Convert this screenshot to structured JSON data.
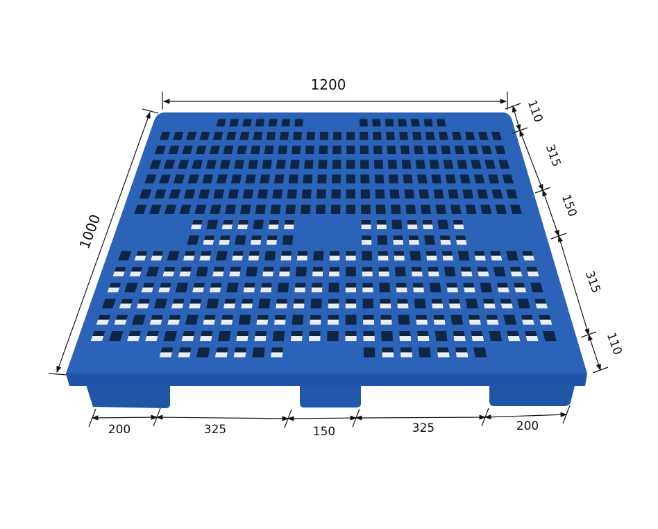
{
  "figure": {
    "subject": "plastic pallet",
    "colors": {
      "pallet": "#2a63b8",
      "pallet_shadow": "#1d4e9a",
      "holes": "#0f2545",
      "dimension_lines": "#111111"
    },
    "overall": {
      "length": "1200",
      "width": "1000"
    },
    "side_dimensions": [
      "110",
      "315",
      "150",
      "315",
      "110"
    ],
    "front_dimensions": [
      "200",
      "325",
      "150",
      "325",
      "200"
    ]
  }
}
